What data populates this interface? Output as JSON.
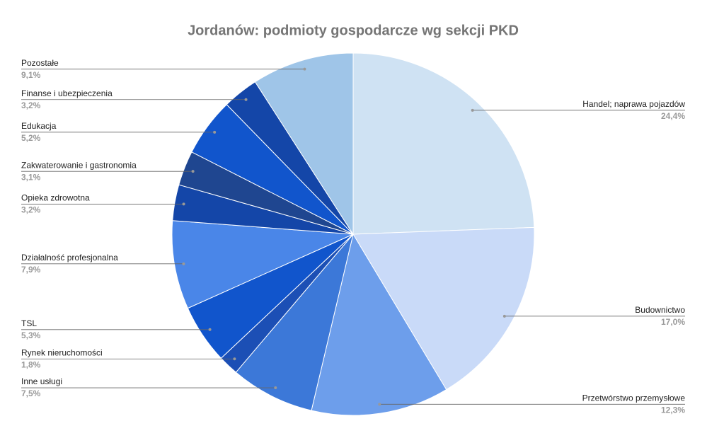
{
  "chart_data": {
    "type": "pie",
    "title": "Jordanów: podmioty gospodarcze wg sekcji PKD",
    "categories": [
      "Handel; naprawa pojazdów",
      "Budownictwo",
      "Przetwórstwo przemysłowe",
      "Inne usługi",
      "Rynek nieruchomości",
      "TSL",
      "Działalność profesjonalna",
      "Opieka zdrowotna",
      "Zakwaterowanie i gastronomia",
      "Edukacja",
      "Finanse i ubezpieczenia",
      "Pozostałe"
    ],
    "values": [
      24.4,
      17.0,
      12.3,
      7.5,
      1.8,
      5.3,
      7.9,
      3.2,
      3.1,
      5.2,
      3.2,
      9.1
    ],
    "value_labels": [
      "24,4%",
      "17,0%",
      "12,3%",
      "7,5%",
      "1,8%",
      "5,3%",
      "7,9%",
      "3,2%",
      "3,1%",
      "5,2%",
      "3,2%",
      "9,1%"
    ],
    "colors": [
      "#cfe2f3",
      "#c9daf8",
      "#6d9eeb",
      "#3c78d8",
      "#1c4fb5",
      "#1155cc",
      "#4a86e8",
      "#1446a8",
      "#1f4690",
      "#1155cc",
      "#1446a8",
      "#9fc5e8"
    ]
  }
}
